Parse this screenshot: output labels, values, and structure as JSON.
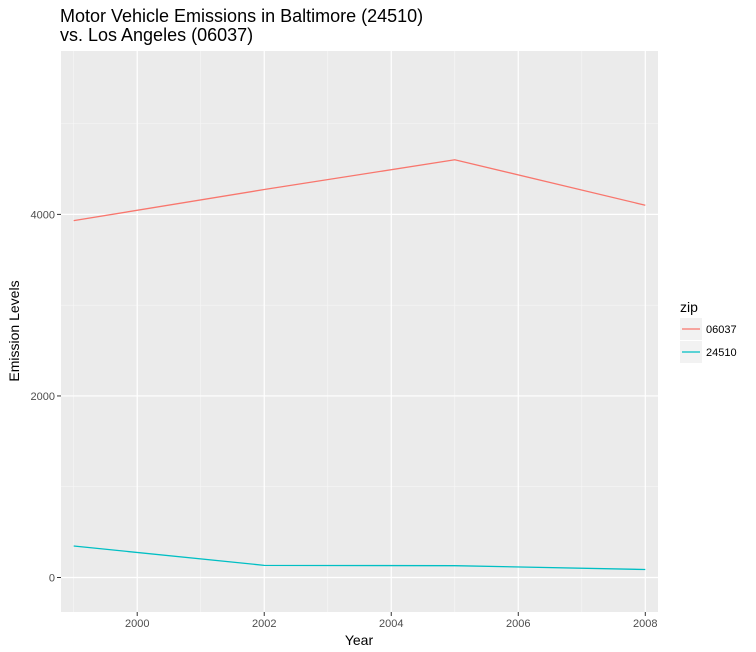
{
  "chart_data": {
    "type": "line",
    "title": "Motor Vehicle Emissions in Baltimore (24510)",
    "subtitle": "vs. Los Angeles (06037)",
    "xlabel": "Year",
    "ylabel": "Emission Levels",
    "x": [
      1999,
      2002,
      2005,
      2008
    ],
    "xlim": [
      1998.8,
      2008.2
    ],
    "ylim": [
      -380,
      5800
    ],
    "x_ticks": [
      2000,
      2002,
      2004,
      2006,
      2008
    ],
    "x_tick_labels": [
      "2000",
      "2002",
      "2004",
      "2006",
      "2008"
    ],
    "y_ticks": [
      0,
      2000,
      4000
    ],
    "y_tick_labels": [
      "0",
      "2000",
      "4000"
    ],
    "grid": true,
    "legend": {
      "title": "zip",
      "placement": "right"
    },
    "series": [
      {
        "name": "06037",
        "color": "#F8766D",
        "values": [
          3931,
          4274,
          4602,
          4101
        ]
      },
      {
        "name": "24510",
        "color": "#00BFC4",
        "values": [
          347,
          134,
          130,
          88
        ]
      }
    ]
  }
}
